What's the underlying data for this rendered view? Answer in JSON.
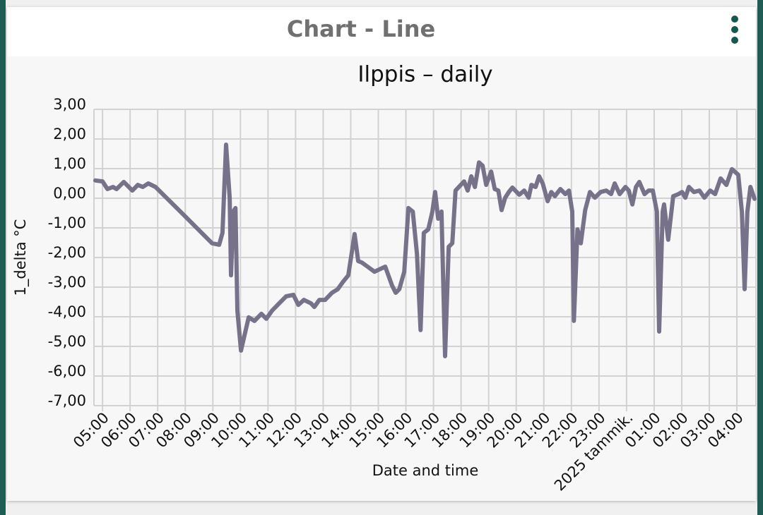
{
  "header": {
    "title": "Chart - Line"
  },
  "chart_data": {
    "type": "line",
    "title": "Ilppis – daily",
    "x_label": "Date and time",
    "y_label": "1_delta °C",
    "color": "#77728a",
    "grid": true,
    "xlim": [
      4.69,
      28.69
    ],
    "ylim": [
      -7,
      3
    ],
    "xticks": [
      {
        "value": 5,
        "label": "05:00"
      },
      {
        "value": 6,
        "label": "06:00"
      },
      {
        "value": 7,
        "label": "07:00"
      },
      {
        "value": 8,
        "label": "08:00"
      },
      {
        "value": 9,
        "label": "09:00"
      },
      {
        "value": 10,
        "label": "10:00"
      },
      {
        "value": 11,
        "label": "11:00"
      },
      {
        "value": 12,
        "label": "12:00"
      },
      {
        "value": 13,
        "label": "13:00"
      },
      {
        "value": 14,
        "label": "14:00"
      },
      {
        "value": 15,
        "label": "15:00"
      },
      {
        "value": 16,
        "label": "16:00"
      },
      {
        "value": 17,
        "label": "17:00"
      },
      {
        "value": 18,
        "label": "18:00"
      },
      {
        "value": 19,
        "label": "19:00"
      },
      {
        "value": 20,
        "label": "20:00"
      },
      {
        "value": 21,
        "label": "21:00"
      },
      {
        "value": 22,
        "label": "22:00"
      },
      {
        "value": 23,
        "label": "23:00"
      },
      {
        "value": 24,
        "label": "2025 tammik."
      },
      {
        "value": 25,
        "label": "01:00"
      },
      {
        "value": 26,
        "label": "02:00"
      },
      {
        "value": 27,
        "label": "03:00"
      },
      {
        "value": 28,
        "label": "04:00"
      }
    ],
    "yticks": [
      {
        "value": 3,
        "label": "3,00"
      },
      {
        "value": 2,
        "label": "2,00"
      },
      {
        "value": 1,
        "label": "1,00"
      },
      {
        "value": 0,
        "label": "0,00"
      },
      {
        "value": -1,
        "label": "-1,00"
      },
      {
        "value": -2,
        "label": "-2,00"
      },
      {
        "value": -3,
        "label": "-3,00"
      },
      {
        "value": -4,
        "label": "-4,00"
      },
      {
        "value": -5,
        "label": "-5,00"
      },
      {
        "value": -6,
        "label": "-6,00"
      },
      {
        "value": -7,
        "label": "-7,00"
      }
    ],
    "x": [
      4.74,
      5.0,
      5.18,
      5.38,
      5.51,
      5.77,
      5.9,
      6.08,
      6.28,
      6.46,
      6.66,
      6.92,
      7.95,
      8.97,
      9.23,
      9.35,
      9.48,
      9.61,
      9.66,
      9.74,
      9.82,
      9.89,
      10.02,
      10.12,
      10.3,
      10.51,
      10.76,
      10.94,
      11.15,
      11.4,
      11.66,
      11.92,
      12.1,
      12.3,
      12.56,
      12.68,
      12.86,
      13.07,
      13.32,
      13.53,
      13.71,
      13.91,
      14.14,
      14.27,
      14.4,
      14.61,
      14.86,
      15.04,
      15.25,
      15.5,
      15.63,
      15.76,
      15.94,
      16.09,
      16.25,
      16.4,
      16.53,
      16.65,
      16.81,
      16.96,
      17.06,
      17.17,
      17.29,
      17.42,
      17.55,
      17.68,
      17.8,
      17.99,
      18.11,
      18.24,
      18.37,
      18.5,
      18.65,
      18.78,
      18.91,
      19.09,
      19.22,
      19.35,
      19.47,
      19.6,
      19.73,
      19.86,
      20.11,
      20.29,
      20.45,
      20.55,
      20.7,
      20.83,
      20.96,
      21.14,
      21.27,
      21.4,
      21.6,
      21.78,
      21.91,
      22.03,
      22.09,
      22.22,
      22.34,
      22.5,
      22.67,
      22.85,
      23.06,
      23.26,
      23.44,
      23.57,
      23.75,
      23.96,
      24.08,
      24.21,
      24.34,
      24.46,
      24.65,
      24.8,
      24.95,
      25.1,
      25.18,
      25.31,
      25.36,
      25.51,
      25.69,
      25.88,
      26.01,
      26.13,
      26.26,
      26.44,
      26.64,
      26.82,
      27.03,
      27.21,
      27.41,
      27.62,
      27.82,
      28.05,
      28.18,
      28.28,
      28.38,
      28.49,
      28.64
    ],
    "values": [
      0.6,
      0.57,
      0.31,
      0.38,
      0.31,
      0.55,
      0.43,
      0.26,
      0.45,
      0.38,
      0.5,
      0.38,
      -0.57,
      -1.52,
      -1.57,
      -1.17,
      1.81,
      0.02,
      -2.6,
      -0.45,
      -0.33,
      -3.79,
      -5.14,
      -4.74,
      -4.02,
      -4.14,
      -3.9,
      -4.07,
      -3.79,
      -3.55,
      -3.31,
      -3.26,
      -3.6,
      -3.43,
      -3.55,
      -3.67,
      -3.43,
      -3.43,
      -3.19,
      -3.07,
      -2.83,
      -2.6,
      -1.21,
      -2.12,
      -2.17,
      -2.31,
      -2.48,
      -2.4,
      -2.31,
      -2.95,
      -3.19,
      -3.07,
      -2.48,
      -0.33,
      -0.45,
      -1.88,
      -4.45,
      -1.17,
      -1.05,
      -0.45,
      0.21,
      -0.69,
      -0.45,
      -5.33,
      -1.64,
      -1.52,
      0.26,
      0.45,
      0.57,
      0.26,
      0.74,
      0.38,
      1.21,
      1.1,
      0.45,
      0.9,
      0.31,
      0.26,
      -0.4,
      0.02,
      0.21,
      0.36,
      0.12,
      0.26,
      0.02,
      0.45,
      0.38,
      0.74,
      0.5,
      -0.1,
      0.21,
      0.07,
      0.31,
      0.14,
      0.26,
      -0.45,
      -4.14,
      -1.05,
      -1.52,
      -0.4,
      0.21,
      0.02,
      0.21,
      0.26,
      0.14,
      0.5,
      0.14,
      0.38,
      0.26,
      -0.21,
      0.38,
      0.55,
      0.14,
      0.26,
      0.26,
      -0.45,
      -4.5,
      -0.45,
      -0.21,
      -1.4,
      0.07,
      0.14,
      0.21,
      0.02,
      0.38,
      0.21,
      0.26,
      0.02,
      0.26,
      0.14,
      0.67,
      0.45,
      0.98,
      0.79,
      -0.45,
      -3.07,
      -0.45,
      0.38,
      -0.02
    ]
  }
}
